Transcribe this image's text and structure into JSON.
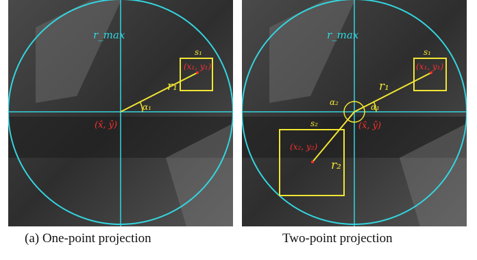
{
  "colors": {
    "circle": "#33d6e0",
    "axes": "#33d6e0",
    "box": "#f2e633",
    "ray": "#f2e633",
    "point_label": "#ff3030",
    "text_label": "#f2e633",
    "rmax_label": "#33d6e0",
    "background": "#3a3a3a"
  },
  "panels": [
    {
      "labels": {
        "rmax": "r_max",
        "s1": "s₁",
        "p1": "(x₁, y₁)",
        "r1": "r₁",
        "alpha1": "α₁",
        "center": "(x̂, ŷ)"
      },
      "caption": "(a) One-point projection"
    },
    {
      "labels": {
        "rmax": "r_max",
        "s1": "s₁",
        "p1": "(x₁, y₁)",
        "r1": "r₁",
        "alpha1": "α₁",
        "alpha2": "α₂",
        "center": "(x̂, ŷ)",
        "s2": "s₂",
        "p2": "(x₂, y₂)",
        "r2": "r₂"
      },
      "caption": "Two-point projection"
    }
  ]
}
